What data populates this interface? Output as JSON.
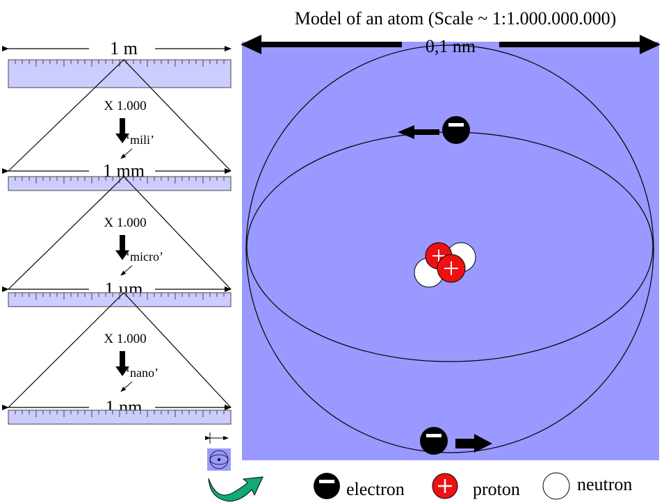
{
  "title": "Model of an atom (Scale ~ 1:1.000.000.000)",
  "atom_size_label": "0,1 nm",
  "colors": {
    "panel": "#9999ff",
    "ruler": "#ccccff",
    "proton": "#ff0000",
    "neutron": "#ffffff",
    "electron": "#000000",
    "rotate_arrow": "#11aa77"
  },
  "scale_ladder": {
    "levels": [
      {
        "label": "1 m"
      },
      {
        "label": "1 mm"
      },
      {
        "label": "1 µm"
      },
      {
        "label": "1 nm"
      }
    ],
    "steps": [
      {
        "factor": "X 1.000",
        "prefix": "‘mili’"
      },
      {
        "factor": "X 1.000",
        "prefix": "‘micro’"
      },
      {
        "factor": "X 1.000",
        "prefix": "‘nano’"
      }
    ]
  },
  "legend": {
    "electron": "electron",
    "proton": "proton",
    "neutron": "neutron"
  }
}
